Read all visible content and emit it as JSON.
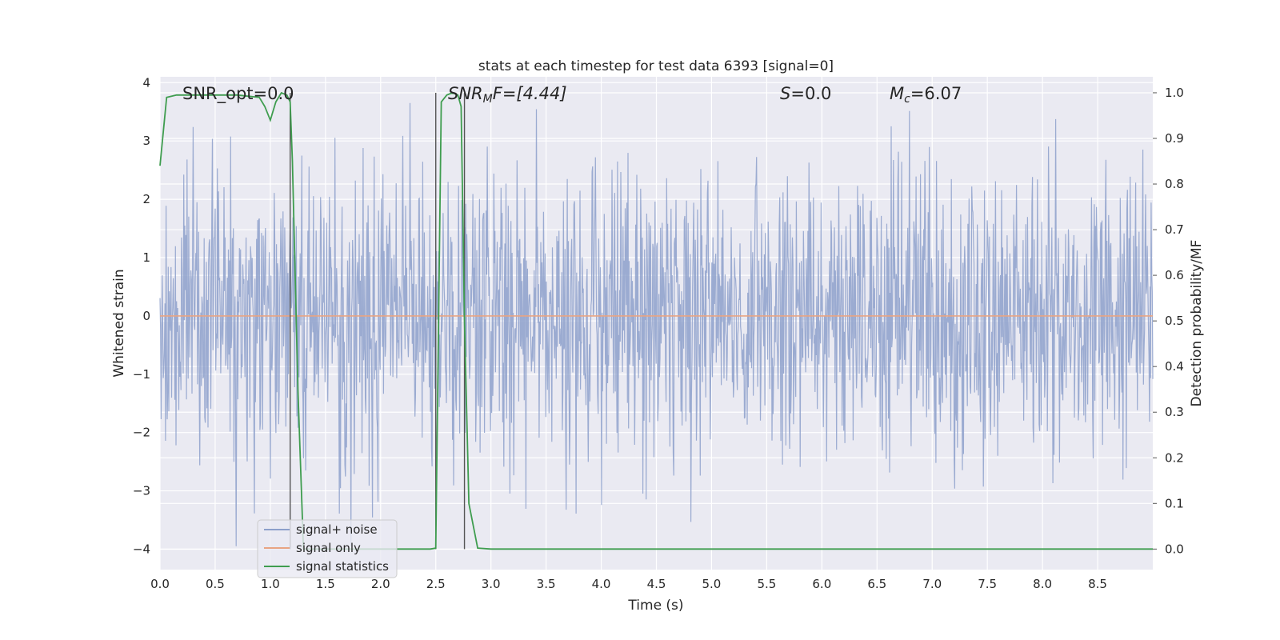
{
  "chart_data": {
    "type": "line",
    "title": "stats at each timestep for test data 6393 [signal=0]",
    "xlabel": "Time (s)",
    "ylabel_left": "Whitened strain",
    "ylabel_right": "Detection probability/MF",
    "xlim": [
      0,
      9.0
    ],
    "ylim_left": [
      -4.35,
      4.1
    ],
    "ylim_right": [
      -0.045,
      1.035
    ],
    "x_ticks": [
      "0.0",
      "0.5",
      "1.0",
      "1.5",
      "2.0",
      "2.5",
      "3.0",
      "3.5",
      "4.0",
      "4.5",
      "5.0",
      "5.5",
      "6.0",
      "6.5",
      "7.0",
      "7.5",
      "8.0",
      "8.5"
    ],
    "y_ticks_left": [
      "4",
      "3",
      "2",
      "1",
      "0",
      "−1",
      "−2",
      "−3",
      "−4"
    ],
    "y_ticks_right": [
      "1.0",
      "0.9",
      "0.8",
      "0.7",
      "0.6",
      "0.5",
      "0.4",
      "0.3",
      "0.2",
      "0.1",
      "0.0"
    ],
    "grid": true,
    "legend_position": "lower-left",
    "annotations": {
      "snr_opt": "SNR_opt=0.0",
      "snr_mf_main": "SNR",
      "snr_mf_sub": "M",
      "snr_mf_rest": "F=[4.44]",
      "s_italic": "S",
      "s_rest": "=0.0",
      "mc_italic": "M",
      "mc_sub": "c",
      "mc_rest": "=6.07"
    },
    "vertical_lines_x": [
      1.18,
      2.5,
      2.76
    ],
    "series": [
      {
        "name": "signal+ noise",
        "color": "#8da0cb",
        "axis": "left",
        "noise_sigma": 1.0,
        "noise_samples": 1800,
        "x_range": [
          0,
          9.0
        ]
      },
      {
        "name": "signal only",
        "color": "#e8a483",
        "axis": "left",
        "x": [
          0,
          9.0
        ],
        "y": [
          0,
          0
        ]
      },
      {
        "name": "signal statistics",
        "color": "#3f9d4f",
        "axis": "right",
        "x": [
          0,
          0.06,
          0.15,
          0.3,
          0.5,
          0.7,
          0.9,
          0.95,
          1.0,
          1.05,
          1.1,
          1.15,
          1.18,
          1.2,
          1.25,
          1.3,
          1.35,
          1.4,
          2.0,
          2.45,
          2.5,
          2.55,
          2.6,
          2.65,
          2.7,
          2.73,
          2.76,
          2.8,
          2.88,
          3.0,
          5.0,
          7.0,
          9.0
        ],
        "y": [
          0.84,
          0.99,
          0.995,
          0.995,
          0.995,
          0.995,
          0.99,
          0.97,
          0.94,
          0.98,
          1.0,
          0.995,
          0.98,
          0.85,
          0.35,
          0.0,
          0.0,
          0.0,
          0.0,
          0.0,
          0.002,
          0.98,
          0.995,
          1.0,
          0.995,
          0.97,
          0.5,
          0.1,
          0.002,
          0.0,
          0.0,
          0.0,
          0.0
        ]
      }
    ]
  }
}
